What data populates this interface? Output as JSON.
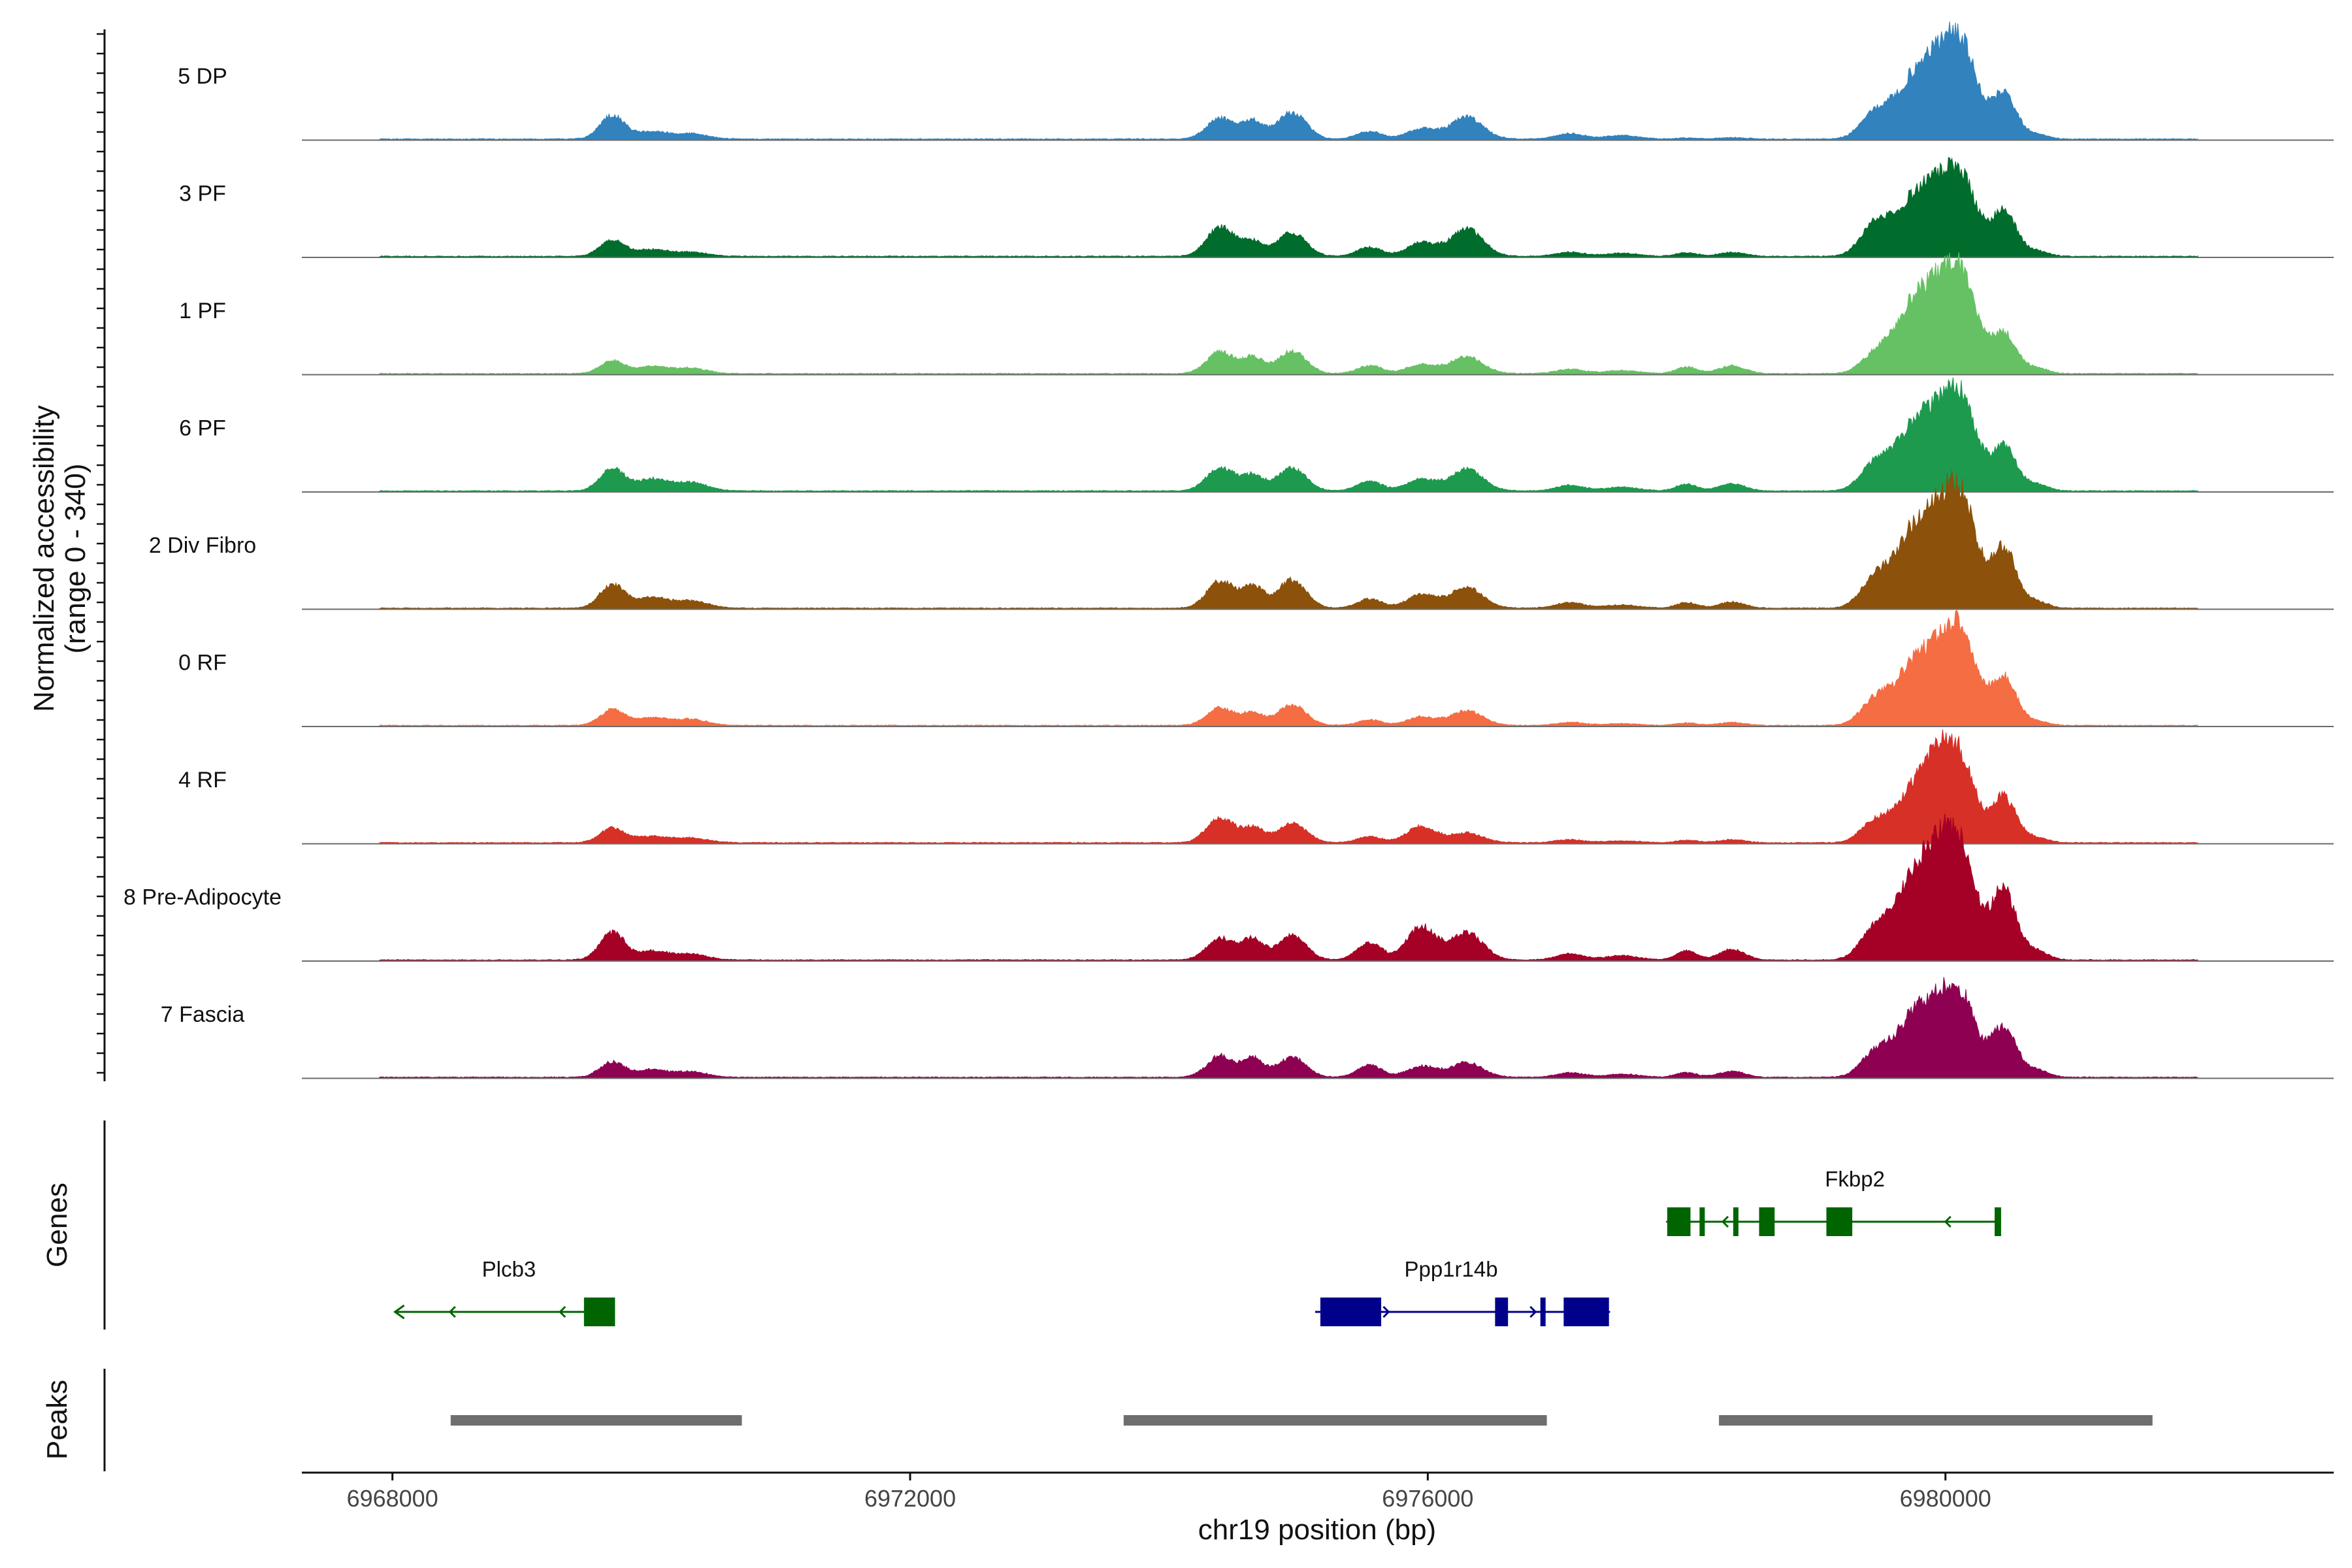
{
  "chart_data": {
    "type": "area",
    "title": "",
    "xlabel": "chr19 position (bp)",
    "ylabel": "Normalized accessibility",
    "ylabel_range": "(range 0 - 340)",
    "ylim": [
      0,
      340
    ],
    "xlim": [
      6967300,
      6983000
    ],
    "x_ticks": [
      6968000,
      6972000,
      6976000,
      6980000
    ],
    "x_tick_labels": [
      "6968000",
      "6972000",
      "6976000",
      "6980000"
    ],
    "peak_centers": [
      6969700,
      6970000,
      6970300,
      6974400,
      6974650,
      6974950,
      6975550,
      6975950,
      6976300,
      6977100,
      6977500,
      6978000,
      6978350,
      6979450,
      6979750,
      6980000,
      6980150,
      6980450,
      6980700
    ],
    "peak_widths": [
      95,
      115,
      130,
      105,
      80,
      110,
      95,
      110,
      125,
      110,
      130,
      80,
      100,
      110,
      150,
      140,
      110,
      95,
      90
    ],
    "series": [
      {
        "name": "5 DP",
        "color": "#3182bd",
        "peak_heights": [
          78,
          24,
          18,
          68,
          58,
          88,
          25,
          34,
          72,
          18,
          12,
          4,
          5,
          75,
          180,
          220,
          190,
          150,
          15
        ]
      },
      {
        "name": "3 PF",
        "color": "#006d2c",
        "peak_heights": [
          54,
          22,
          14,
          98,
          48,
          78,
          30,
          45,
          90,
          14,
          10,
          12,
          13,
          95,
          170,
          185,
          160,
          150,
          18
        ]
      },
      {
        "name": "1 PF",
        "color": "#66c164",
        "peak_heights": [
          42,
          22,
          18,
          72,
          52,
          74,
          26,
          30,
          55,
          14,
          10,
          22,
          26,
          52,
          210,
          230,
          200,
          135,
          18
        ]
      },
      {
        "name": "6 PF",
        "color": "#1d9a4e",
        "peak_heights": [
          72,
          38,
          28,
          78,
          50,
          75,
          32,
          38,
          72,
          18,
          12,
          22,
          24,
          80,
          190,
          205,
          190,
          145,
          22
        ]
      },
      {
        "name": "2 Div Fibro",
        "color": "#8c510a",
        "peak_heights": [
          78,
          34,
          24,
          90,
          70,
          92,
          30,
          45,
          68,
          18,
          10,
          18,
          20,
          85,
          230,
          250,
          225,
          200,
          22
        ]
      },
      {
        "name": "0 RF",
        "color": "#f46d43",
        "peak_heights": [
          52,
          24,
          20,
          58,
          40,
          68,
          18,
          28,
          48,
          10,
          6,
          8,
          10,
          75,
          180,
          200,
          195,
          160,
          14
        ]
      },
      {
        "name": "4 RF",
        "color": "#d73027",
        "peak_heights": [
          48,
          20,
          16,
          82,
          48,
          64,
          20,
          54,
          32,
          10,
          6,
          8,
          10,
          60,
          150,
          260,
          120,
          150,
          16
        ]
      },
      {
        "name": "8 Pre-Adipocyte",
        "color": "#a50026",
        "peak_heights": [
          90,
          28,
          20,
          72,
          68,
          80,
          58,
          108,
          92,
          20,
          14,
          30,
          34,
          92,
          240,
          300,
          200,
          230,
          30
        ]
      },
      {
        "name": "7 Fascia",
        "color": "#8e0152",
        "peak_heights": [
          50,
          24,
          18,
          70,
          60,
          66,
          40,
          36,
          48,
          14,
          10,
          16,
          20,
          70,
          180,
          200,
          150,
          165,
          24
        ]
      }
    ],
    "genes": [
      {
        "name": "Plcb3",
        "strand": "-",
        "start": 6968020,
        "end": 6969720,
        "color": "#006400",
        "exons": [
          [
            6969480,
            6969720
          ]
        ]
      },
      {
        "name": "Ppp1r14b",
        "strand": "+",
        "start": 6975130,
        "end": 6977400,
        "color": "#00008b",
        "exons": [
          [
            6975170,
            6975640
          ],
          [
            6976520,
            6976620
          ],
          [
            6976870,
            6976900
          ],
          [
            6977050,
            6977400
          ]
        ]
      },
      {
        "name": "Fkbp2",
        "strand": "-",
        "start": 6977850,
        "end": 6980430,
        "color": "#006400",
        "exons": [
          [
            6977850,
            6978030
          ],
          [
            6978100,
            6978140
          ],
          [
            6978360,
            6978400
          ],
          [
            6978560,
            6978680
          ],
          [
            6979080,
            6979280
          ],
          [
            6980380,
            6980430
          ]
        ]
      }
    ],
    "peaks": [
      [
        6968450,
        6970700
      ],
      [
        6973650,
        6976920
      ],
      [
        6978250,
        6981600
      ]
    ],
    "panel_titles": {
      "genes": "Genes",
      "peaks": "Peaks"
    }
  }
}
